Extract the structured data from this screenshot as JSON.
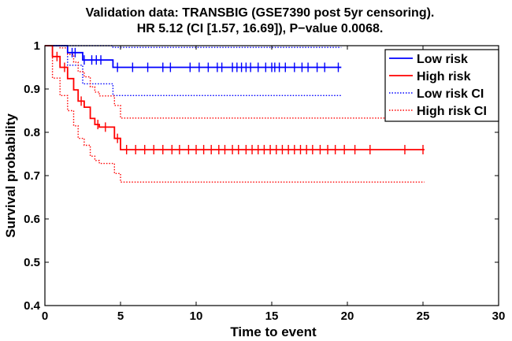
{
  "chart_data": {
    "type": "line",
    "title_lines": [
      "Validation data: TRANSBIG (GSE7390 post 5yr censoring).",
      "HR 5.12 (CI [1.57, 16.69]), P−value 0.0068."
    ],
    "xlabel": "Time to event",
    "ylabel": "Survival probability",
    "xlim": [
      0,
      30
    ],
    "ylim": [
      0.4,
      1
    ],
    "xticks": [
      0,
      5,
      10,
      15,
      20,
      25,
      30
    ],
    "yticks": [
      0.4,
      0.5,
      0.6,
      0.7,
      0.8,
      0.9,
      1
    ],
    "xtick_labels": [
      "0",
      "5",
      "10",
      "15",
      "20",
      "25",
      "30"
    ],
    "ytick_labels": [
      "0.4",
      "0.5",
      "0.6",
      "0.7",
      "0.8",
      "0.9",
      "1"
    ],
    "grid": false,
    "legend_position": "top-right",
    "series": [
      {
        "name": "Low risk",
        "color": "#0000ff",
        "style": "solid",
        "x": [
          0,
          1.5,
          1.5,
          2.5,
          2.5,
          4.5,
          4.5,
          19.6
        ],
        "y": [
          1,
          1,
          0.984,
          0.984,
          0.967,
          0.967,
          0.95,
          0.95
        ],
        "censor_x": [
          1.8,
          2.0,
          2.6,
          3.1,
          3.4,
          3.7,
          4.8,
          5.8,
          6.8,
          7.8,
          8.3,
          9.6,
          10.2,
          10.8,
          11.4,
          11.7,
          12.4,
          12.7,
          13.0,
          13.3,
          13.6,
          14.1,
          14.6,
          15.0,
          15.2,
          15.5,
          15.9,
          16.5,
          17.0,
          17.4,
          18.0,
          18.5,
          19.4
        ]
      },
      {
        "name": "High risk",
        "color": "#ff0000",
        "style": "solid",
        "x": [
          0,
          0.5,
          0.5,
          1.0,
          1.0,
          1.5,
          1.5,
          1.9,
          1.9,
          2.2,
          2.2,
          2.6,
          2.6,
          3.0,
          3.0,
          3.3,
          3.3,
          3.6,
          3.6,
          4.6,
          4.6,
          5.0,
          5.0,
          25.1
        ],
        "y": [
          1,
          1,
          0.975,
          0.975,
          0.95,
          0.95,
          0.924,
          0.924,
          0.898,
          0.898,
          0.872,
          0.872,
          0.858,
          0.858,
          0.832,
          0.832,
          0.818,
          0.818,
          0.812,
          0.812,
          0.786,
          0.786,
          0.76,
          0.76
        ],
        "censor_x": [
          0.8,
          1.3,
          2.4,
          3.5,
          4.0,
          4.8,
          5.4,
          6.0,
          6.6,
          7.2,
          7.8,
          8.4,
          8.9,
          9.5,
          10.0,
          10.5,
          11.0,
          11.5,
          11.9,
          12.4,
          12.8,
          13.3,
          13.7,
          14.1,
          14.5,
          14.9,
          15.3,
          15.7,
          16.1,
          16.5,
          16.9,
          17.3,
          17.7,
          18.2,
          18.7,
          19.2,
          19.8,
          20.5,
          21.5,
          23.8,
          25.0
        ]
      },
      {
        "name": "Low risk CI",
        "color": "#0000ff",
        "style": "dotted",
        "x": [
          0,
          1.5,
          1.5,
          2.5,
          2.5,
          4.5,
          4.5,
          19.6
        ],
        "upper": [
          1,
          1,
          1,
          1,
          1,
          1,
          0.996,
          0.996
        ],
        "lower": [
          1,
          1,
          0.955,
          0.955,
          0.912,
          0.912,
          0.885,
          0.885
        ]
      },
      {
        "name": "High risk CI",
        "color": "#ff0000",
        "style": "dotted",
        "x": [
          0,
          0.5,
          0.5,
          1.0,
          1.0,
          1.5,
          1.5,
          1.9,
          1.9,
          2.2,
          2.2,
          2.6,
          2.6,
          3.0,
          3.0,
          3.3,
          3.3,
          3.6,
          3.6,
          4.6,
          4.6,
          5.0,
          5.0,
          25.1
        ],
        "upper": [
          1,
          1,
          1,
          1,
          0.995,
          0.995,
          0.98,
          0.98,
          0.962,
          0.962,
          0.94,
          0.94,
          0.928,
          0.928,
          0.905,
          0.905,
          0.893,
          0.893,
          0.884,
          0.884,
          0.862,
          0.862,
          0.833,
          0.833
        ],
        "lower": [
          1,
          1,
          0.925,
          0.925,
          0.885,
          0.885,
          0.85,
          0.85,
          0.815,
          0.815,
          0.786,
          0.786,
          0.77,
          0.77,
          0.745,
          0.745,
          0.735,
          0.735,
          0.728,
          0.728,
          0.705,
          0.705,
          0.685,
          0.685
        ]
      }
    ]
  }
}
